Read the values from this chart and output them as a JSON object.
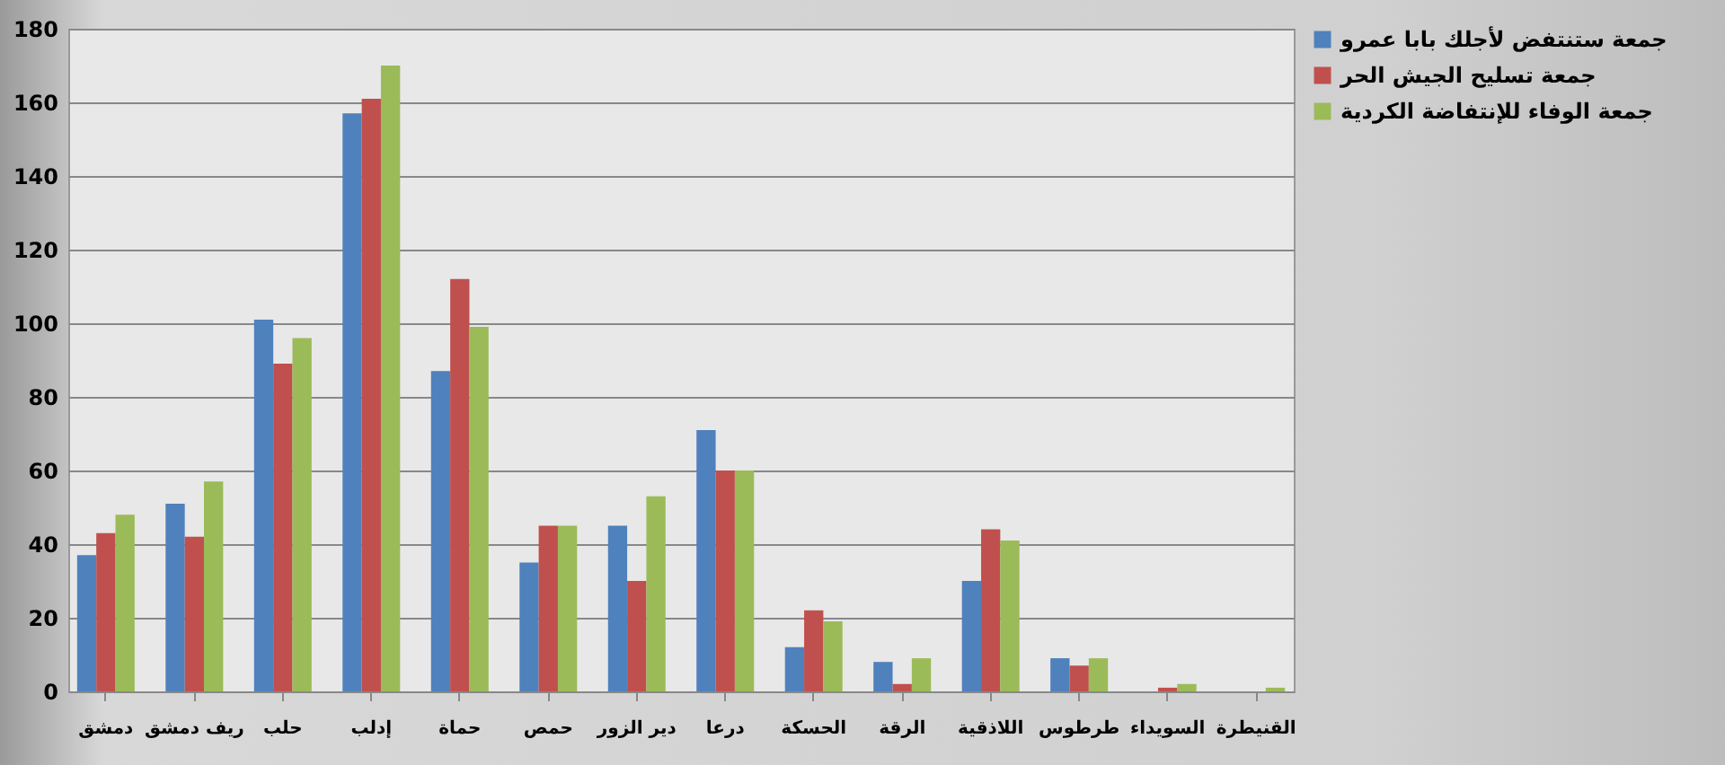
{
  "chart_data": {
    "type": "bar",
    "categories": [
      "دمشق",
      "ريف دمشق",
      "حلب",
      "إدلب",
      "حماة",
      "حمص",
      "دير الزور",
      "درعا",
      "الحسكة",
      "الرقة",
      "اللاذقية",
      "طرطوس",
      "السويداء",
      "القنيطرة"
    ],
    "series": [
      {
        "name": "جمعة ستنتفض لأجلك بابا عمرو",
        "color": "#4f81bd",
        "values": [
          37,
          51,
          101,
          157,
          87,
          35,
          45,
          71,
          12,
          8,
          30,
          9,
          0,
          0
        ]
      },
      {
        "name": "جمعة تسليح الجيش الحر",
        "color": "#c0504d",
        "values": [
          43,
          42,
          89,
          161,
          112,
          45,
          30,
          60,
          22,
          2,
          44,
          7,
          1,
          0
        ]
      },
      {
        "name": "جمعة الوفاء للإنتفاضة الكردية",
        "color": "#9bbb59",
        "values": [
          48,
          57,
          96,
          170,
          99,
          45,
          53,
          60,
          19,
          9,
          41,
          9,
          2,
          1
        ]
      }
    ],
    "ylim": [
      0,
      180
    ],
    "yticks": [
      0,
      20,
      40,
      60,
      80,
      100,
      120,
      140,
      160,
      180
    ],
    "grid": "y",
    "legend": "right"
  }
}
